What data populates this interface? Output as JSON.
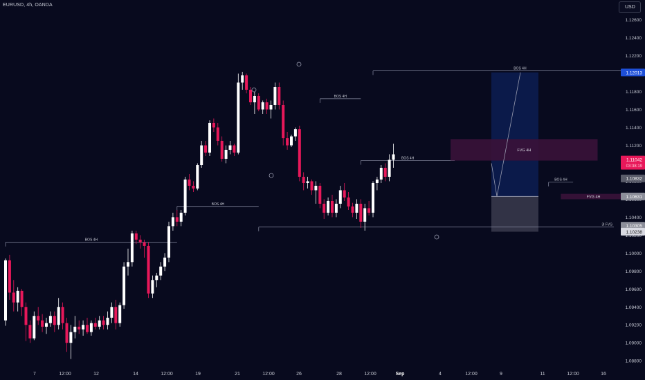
{
  "header": {
    "symbol": "EURUSD, 4h, OANDA",
    "currency_button": "USD"
  },
  "colors": {
    "background": "#080a1e",
    "bull": "#ffffff",
    "bear": "#e8185a",
    "bos_line": "#8c90a6",
    "fvg_fill": "#3a1238",
    "target_zone": "#0b1a4a",
    "stop_zone": "#3a3b4e",
    "price_badge_current": "#e8185a",
    "price_badge_target": "#1e4fd8"
  },
  "chart_data": {
    "type": "candlestick",
    "y_axis": {
      "ticks": [
        "1.12600",
        "1.12400",
        "1.12200",
        "1.12000",
        "1.11800",
        "1.11600",
        "1.11400",
        "1.11200",
        "1.11000",
        "1.10800",
        "1.10600",
        "1.10400",
        "1.10200",
        "1.10000",
        "1.09800",
        "1.09600",
        "1.09400",
        "1.09200",
        "1.09000",
        "1.08800"
      ],
      "range": [
        1.0874,
        1.1282
      ]
    },
    "x_axis": {
      "ticks": [
        "7",
        "12:00",
        "12",
        "14",
        "12:00",
        "19",
        "21",
        "12:00",
        "26",
        "28",
        "12:00",
        "Sep",
        "4",
        "12:00",
        "9",
        "11",
        "12:00",
        "16"
      ]
    },
    "price_labels": [
      {
        "value": "1.12013",
        "price": 1.12013,
        "style": "target"
      },
      {
        "value": "1.11042",
        "price": 1.11042,
        "style": "current",
        "countdown": "03:38:19"
      },
      {
        "value": "1.10832",
        "price": 1.10832,
        "style": "grey"
      },
      {
        "value": "1.10631",
        "price": 1.10631,
        "style": "light"
      },
      {
        "value": "1.10305",
        "price": 1.10305,
        "style": "light"
      },
      {
        "value": "1.10238",
        "price": 1.10238,
        "style": "white"
      }
    ],
    "annotations": [
      {
        "text": "BOS 4H",
        "x0": 0,
        "x1": 42,
        "price": 1.1012
      },
      {
        "text": "BOS 4H",
        "x0": 42,
        "x1": 62,
        "price": 1.1052
      },
      {
        "text": "BOS 4H",
        "x0": 77,
        "x1": 87,
        "price": 1.1172
      },
      {
        "text": "BOS 4H",
        "x0": 87,
        "x1": 110,
        "price": 1.1103
      },
      {
        "text": "BOS 4H",
        "x0": 90,
        "x1": 162,
        "price": 1.1203
      },
      {
        "text": "BOS 4H",
        "x0": 133,
        "x1": 139,
        "price": 1.1079
      },
      {
        "text": "FVG 4H",
        "x0": 109,
        "x1": 145,
        "low": 1.1103,
        "high": 1.1127
      },
      {
        "text": "FVG 4H",
        "x0": 136,
        "x1": 152,
        "low": 1.106,
        "high": 1.1066
      },
      {
        "text": "3l FVG",
        "x0": 62,
        "x1": 184,
        "price": 1.1029
      }
    ],
    "position": {
      "entry": 1.10631,
      "target": 1.12013,
      "stop": 1.10238
    },
    "candles": [
      [
        1.0925,
        1.0994,
        1.0919,
        1.0992
      ],
      [
        1.0992,
        1.0998,
        1.0948,
        1.0956
      ],
      [
        1.0956,
        1.097,
        1.0935,
        1.0945
      ],
      [
        1.0945,
        1.0962,
        1.0935,
        1.0958
      ],
      [
        1.0958,
        1.096,
        1.093,
        1.094
      ],
      [
        1.094,
        1.0945,
        1.0902,
        1.092
      ],
      [
        1.092,
        1.0925,
        1.09,
        1.0905
      ],
      [
        1.0905,
        1.0935,
        1.0903,
        1.093
      ],
      [
        1.093,
        1.094,
        1.092,
        1.0925
      ],
      [
        1.0925,
        1.0932,
        1.0912,
        1.0918
      ],
      [
        1.0918,
        1.0928,
        1.091,
        1.0922
      ],
      [
        1.0922,
        1.0935,
        1.0918,
        1.093
      ],
      [
        1.093,
        1.0935,
        1.0912,
        1.092
      ],
      [
        1.092,
        1.095,
        1.0915,
        1.094
      ],
      [
        1.094,
        1.0945,
        1.0915,
        1.0922
      ],
      [
        1.0922,
        1.0928,
        1.089,
        1.09
      ],
      [
        1.09,
        1.092,
        1.0882,
        1.0912
      ],
      [
        1.0912,
        1.093,
        1.0905,
        1.0918
      ],
      [
        1.0918,
        1.0925,
        1.091,
        1.0915
      ],
      [
        1.0915,
        1.0925,
        1.0908,
        1.092
      ],
      [
        1.092,
        1.0928,
        1.091,
        1.0912
      ],
      [
        1.0912,
        1.0925,
        1.0908,
        1.0922
      ],
      [
        1.0922,
        1.0928,
        1.0915,
        1.0918
      ],
      [
        1.0918,
        1.093,
        1.0915,
        1.0925
      ],
      [
        1.0925,
        1.093,
        1.0915,
        1.092
      ],
      [
        1.092,
        1.0935,
        1.0915,
        1.0928
      ],
      [
        1.0928,
        1.0945,
        1.0922,
        1.094
      ],
      [
        1.094,
        1.0948,
        1.0915,
        1.0922
      ],
      [
        1.0922,
        1.0945,
        1.0918,
        1.0942
      ],
      [
        1.0942,
        1.099,
        1.0938,
        1.0985
      ],
      [
        1.0985,
        1.1005,
        1.0975,
        1.099
      ],
      [
        1.099,
        1.1025,
        1.0985,
        1.1022
      ],
      [
        1.1022,
        1.1025,
        1.101,
        1.1015
      ],
      [
        1.1015,
        1.102,
        1.1005,
        1.1012
      ],
      [
        1.1012,
        1.1015,
        1.0995,
        1.1008
      ],
      [
        1.1008,
        1.1012,
        1.095,
        1.0955
      ],
      [
        1.0955,
        1.0975,
        1.095,
        1.097
      ],
      [
        1.097,
        1.0978,
        1.0962,
        1.0975
      ],
      [
        1.0975,
        1.099,
        1.097,
        1.0985
      ],
      [
        1.0985,
        1.1,
        1.098,
        1.0995
      ],
      [
        1.0995,
        1.1035,
        1.099,
        1.103
      ],
      [
        1.103,
        1.1045,
        1.1025,
        1.104
      ],
      [
        1.104,
        1.1048,
        1.103,
        1.1035
      ],
      [
        1.1035,
        1.1048,
        1.103,
        1.1045
      ],
      [
        1.1045,
        1.1085,
        1.1042,
        1.1082
      ],
      [
        1.1082,
        1.1088,
        1.107,
        1.1075
      ],
      [
        1.1075,
        1.108,
        1.1068,
        1.1072
      ],
      [
        1.1072,
        1.11,
        1.107,
        1.1098
      ],
      [
        1.1098,
        1.1125,
        1.1095,
        1.112
      ],
      [
        1.112,
        1.1125,
        1.1108,
        1.1112
      ],
      [
        1.1112,
        1.1148,
        1.1108,
        1.1145
      ],
      [
        1.1145,
        1.115,
        1.1135,
        1.114
      ],
      [
        1.114,
        1.1145,
        1.112,
        1.1125
      ],
      [
        1.1125,
        1.113,
        1.1102,
        1.1105
      ],
      [
        1.1105,
        1.112,
        1.11,
        1.1115
      ],
      [
        1.1115,
        1.1125,
        1.111,
        1.112
      ],
      [
        1.112,
        1.1122,
        1.1108,
        1.1112
      ],
      [
        1.1112,
        1.12,
        1.111,
        1.119
      ],
      [
        1.119,
        1.1202,
        1.1182,
        1.1198
      ],
      [
        1.1198,
        1.12,
        1.1178,
        1.1182
      ],
      [
        1.1182,
        1.1185,
        1.1165,
        1.1168
      ],
      [
        1.1168,
        1.118,
        1.1155,
        1.1175
      ],
      [
        1.1175,
        1.1178,
        1.1158,
        1.116
      ],
      [
        1.116,
        1.117,
        1.1155,
        1.1168
      ],
      [
        1.1168,
        1.1172,
        1.1155,
        1.116
      ],
      [
        1.116,
        1.117,
        1.115,
        1.1165
      ],
      [
        1.1165,
        1.119,
        1.116,
        1.1185
      ],
      [
        1.1185,
        1.119,
        1.116,
        1.1165
      ],
      [
        1.1165,
        1.117,
        1.112,
        1.1128
      ],
      [
        1.1128,
        1.1135,
        1.1115,
        1.112
      ],
      [
        1.112,
        1.1132,
        1.1118,
        1.113
      ],
      [
        1.113,
        1.114,
        1.1125,
        1.1138
      ],
      [
        1.1138,
        1.1142,
        1.108,
        1.1085
      ],
      [
        1.1085,
        1.109,
        1.107,
        1.1078
      ],
      [
        1.1078,
        1.1085,
        1.1072,
        1.108
      ],
      [
        1.108,
        1.1082,
        1.1065,
        1.107
      ],
      [
        1.107,
        1.108,
        1.1055,
        1.1075
      ],
      [
        1.1075,
        1.1078,
        1.105,
        1.1055
      ],
      [
        1.1055,
        1.106,
        1.1038,
        1.1045
      ],
      [
        1.1045,
        1.1062,
        1.1042,
        1.1058
      ],
      [
        1.1058,
        1.1065,
        1.104,
        1.1045
      ],
      [
        1.1045,
        1.106,
        1.104,
        1.1055
      ],
      [
        1.1055,
        1.1075,
        1.105,
        1.107
      ],
      [
        1.107,
        1.1078,
        1.1058,
        1.1062
      ],
      [
        1.1062,
        1.1068,
        1.1048,
        1.1052
      ],
      [
        1.1052,
        1.1056,
        1.104,
        1.1045
      ],
      [
        1.1045,
        1.106,
        1.1038,
        1.1055
      ],
      [
        1.1055,
        1.106,
        1.1028,
        1.1035
      ],
      [
        1.1035,
        1.1055,
        1.1025,
        1.105
      ],
      [
        1.105,
        1.1058,
        1.1042,
        1.1045
      ],
      [
        1.1045,
        1.108,
        1.104,
        1.1078
      ],
      [
        1.1078,
        1.1085,
        1.107,
        1.1082
      ],
      [
        1.1082,
        1.1098,
        1.1078,
        1.1095
      ],
      [
        1.1095,
        1.11,
        1.108,
        1.1085
      ],
      [
        1.1085,
        1.111,
        1.108,
        1.1104
      ],
      [
        1.1104,
        1.1122,
        1.1095,
        1.111
      ]
    ]
  }
}
